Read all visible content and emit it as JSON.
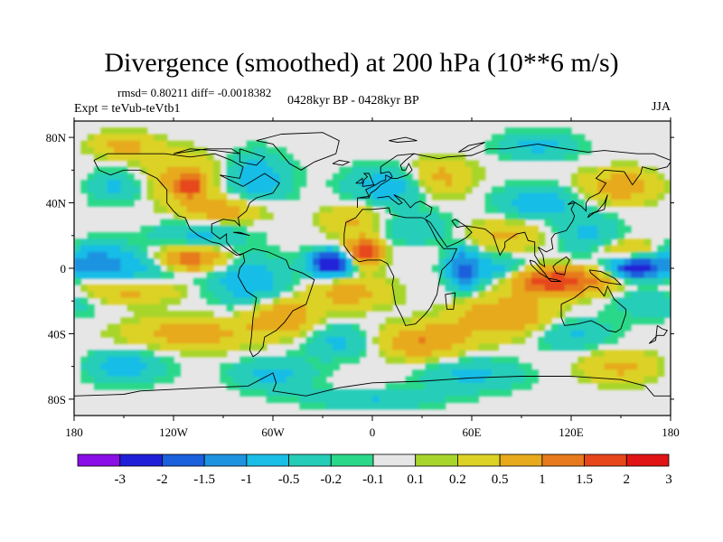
{
  "title": "Divergence (smoothed) at 200 hPa (10**6 m/s)",
  "stats": "rmsd= 0.80211 diff= -0.0018382",
  "experiment": "Expt = teVub-teVtb1",
  "period": "0428kyr BP - 0428kyr BP",
  "season": "JJA",
  "map": {
    "lat_range": [
      -90,
      90
    ],
    "lon_range": [
      -180,
      180
    ],
    "lat_ticks": [
      {
        "value": 80,
        "label": "80N"
      },
      {
        "value": 40,
        "label": "40N"
      },
      {
        "value": 0,
        "label": "0"
      },
      {
        "value": -40,
        "label": "40S"
      },
      {
        "value": -80,
        "label": "80S"
      }
    ],
    "lon_ticks": [
      {
        "value": -180,
        "label": "180"
      },
      {
        "value": -120,
        "label": "120W"
      },
      {
        "value": -60,
        "label": "60W"
      },
      {
        "value": 0,
        "label": "0"
      },
      {
        "value": 60,
        "label": "60E"
      },
      {
        "value": 120,
        "label": "120E"
      },
      {
        "value": 180,
        "label": "180"
      }
    ]
  },
  "colorbar": {
    "labels": [
      "-3",
      "-2",
      "-1.5",
      "-1",
      "-0.5",
      "-0.2",
      "-0.1",
      "0.1",
      "0.2",
      "0.5",
      "1",
      "1.5",
      "2",
      "3"
    ],
    "colors": [
      "#8a0ee6",
      "#2020d8",
      "#1a5fdc",
      "#1e93e0",
      "#19bde6",
      "#25cdb8",
      "#2ad88a",
      "#e6e6e6",
      "#a8d52c",
      "#dcd226",
      "#e6aa1c",
      "#e67a1c",
      "#e6461a",
      "#e01414"
    ]
  },
  "field_blobs": [
    {
      "lon": -168,
      "lat": 5,
      "rlon": 22,
      "rlat": 10,
      "v": -1.0
    },
    {
      "lon": -140,
      "lat": 0,
      "rlon": 30,
      "rlat": 10,
      "v": -0.7
    },
    {
      "lon": -110,
      "lat": 6,
      "rlon": 22,
      "rlat": 8,
      "v": 1.5
    },
    {
      "lon": -150,
      "lat": -13,
      "rlon": 35,
      "rlat": 8,
      "v": 0.7
    },
    {
      "lon": -105,
      "lat": 20,
      "rlon": 28,
      "rlat": 10,
      "v": -0.6
    },
    {
      "lon": -115,
      "lat": 55,
      "rlon": 25,
      "rlat": 15,
      "v": 0.7
    },
    {
      "lon": -110,
      "lat": 50,
      "rlon": 8,
      "rlat": 6,
      "v": 1.5
    },
    {
      "lon": -155,
      "lat": 50,
      "rlon": 20,
      "rlat": 10,
      "v": -0.6
    },
    {
      "lon": -70,
      "lat": 55,
      "rlon": 20,
      "rlat": 15,
      "v": -0.8
    },
    {
      "lon": -90,
      "lat": 35,
      "rlon": 25,
      "rlat": 8,
      "v": 0.8
    },
    {
      "lon": -75,
      "lat": -8,
      "rlon": 25,
      "rlat": 15,
      "v": -0.8
    },
    {
      "lon": -55,
      "lat": -30,
      "rlon": 20,
      "rlat": 10,
      "v": 1.0
    },
    {
      "lon": -110,
      "lat": -40,
      "rlon": 40,
      "rlat": 10,
      "v": 0.7
    },
    {
      "lon": -25,
      "lat": 3,
      "rlon": 12,
      "rlat": 7,
      "v": -3.0
    },
    {
      "lon": -5,
      "lat": 10,
      "rlon": 10,
      "rlat": 8,
      "v": 2.0
    },
    {
      "lon": -15,
      "lat": -15,
      "rlon": 25,
      "rlat": 10,
      "v": 0.7
    },
    {
      "lon": -10,
      "lat": 30,
      "rlon": 20,
      "rlat": 10,
      "v": 0.6
    },
    {
      "lon": 10,
      "lat": 50,
      "rlon": 25,
      "rlat": 12,
      "v": -0.8
    },
    {
      "lon": 40,
      "lat": 55,
      "rlon": 20,
      "rlat": 12,
      "v": 0.7
    },
    {
      "lon": 25,
      "lat": 25,
      "rlon": 25,
      "rlat": 10,
      "v": -0.5
    },
    {
      "lon": 55,
      "lat": 0,
      "rlon": 10,
      "rlat": 12,
      "v": -1.5
    },
    {
      "lon": 75,
      "lat": -2,
      "rlon": 20,
      "rlat": 10,
      "v": -0.8
    },
    {
      "lon": 80,
      "lat": 20,
      "rlon": 25,
      "rlat": 10,
      "v": 0.6
    },
    {
      "lon": 110,
      "lat": -8,
      "rlon": 30,
      "rlat": 8,
      "v": 2.0
    },
    {
      "lon": 100,
      "lat": 40,
      "rlon": 25,
      "rlat": 10,
      "v": -0.8
    },
    {
      "lon": 130,
      "lat": 20,
      "rlon": 20,
      "rlat": 12,
      "v": -0.6
    },
    {
      "lon": 160,
      "lat": 0,
      "rlon": 15,
      "rlat": 6,
      "v": -2.5
    },
    {
      "lon": 155,
      "lat": 12,
      "rlon": 20,
      "rlat": 6,
      "v": 0.6
    },
    {
      "lon": 170,
      "lat": -20,
      "rlon": 25,
      "rlat": 10,
      "v": -0.5
    },
    {
      "lon": 150,
      "lat": 50,
      "rlon": 25,
      "rlat": 10,
      "v": 0.8
    },
    {
      "lon": 80,
      "lat": -30,
      "rlon": 30,
      "rlat": 12,
      "v": 1.0
    },
    {
      "lon": 120,
      "lat": -40,
      "rlon": 25,
      "rlat": 10,
      "v": -0.6
    },
    {
      "lon": 30,
      "lat": -45,
      "rlon": 25,
      "rlat": 10,
      "v": 1.0
    },
    {
      "lon": -20,
      "lat": -45,
      "rlon": 20,
      "rlat": 10,
      "v": -0.6
    },
    {
      "lon": -150,
      "lat": -60,
      "rlon": 25,
      "rlat": 10,
      "v": -0.7
    },
    {
      "lon": -60,
      "lat": -65,
      "rlon": 25,
      "rlat": 10,
      "v": -0.6
    },
    {
      "lon": 60,
      "lat": -65,
      "rlon": 30,
      "rlat": 10,
      "v": -0.6
    },
    {
      "lon": 150,
      "lat": -60,
      "rlon": 25,
      "rlat": 10,
      "v": 0.6
    },
    {
      "lon": 0,
      "lat": -80,
      "rlon": 40,
      "rlat": 6,
      "v": -0.5
    },
    {
      "lon": -150,
      "lat": 75,
      "rlon": 20,
      "rlat": 8,
      "v": 0.6
    },
    {
      "lon": 100,
      "lat": 75,
      "rlon": 25,
      "rlat": 8,
      "v": -0.6
    }
  ]
}
